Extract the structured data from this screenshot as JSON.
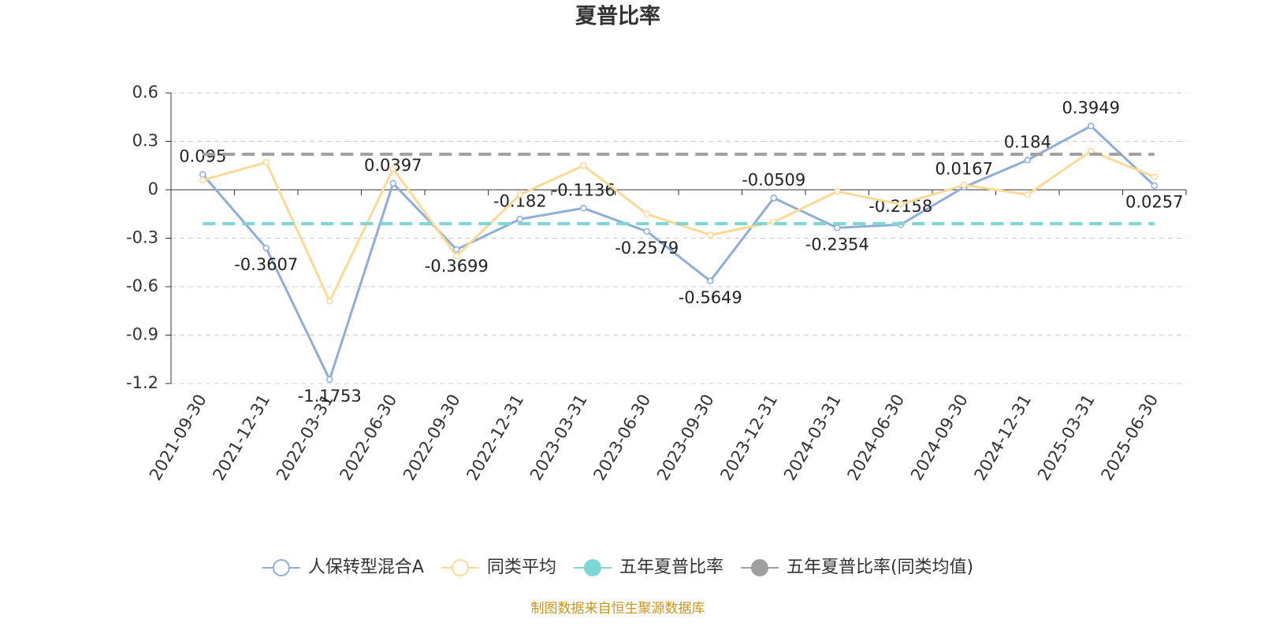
{
  "chart_data": {
    "type": "line",
    "title": "夏普比率",
    "categories": [
      "2021-09-30",
      "2021-12-31",
      "2022-03-31",
      "2022-06-30",
      "2022-09-30",
      "2022-12-31",
      "2023-03-31",
      "2023-06-30",
      "2023-09-30",
      "2023-12-31",
      "2024-03-31",
      "2024-06-30",
      "2024-09-30",
      "2024-12-31",
      "2025-03-31",
      "2025-06-30"
    ],
    "series": [
      {
        "name": "人保转型混合A",
        "color": "#8eaed8",
        "labels": true,
        "values": [
          0.095,
          -0.3607,
          -1.1753,
          0.0397,
          -0.3699,
          -0.182,
          -0.1136,
          -0.2579,
          -0.5649,
          -0.0509,
          -0.2354,
          -0.2158,
          0.0167,
          0.184,
          0.3949,
          0.0257
        ]
      },
      {
        "name": "同类平均",
        "color": "#fcd996",
        "values": [
          0.06,
          0.17,
          -0.69,
          0.13,
          -0.41,
          -0.03,
          0.15,
          -0.15,
          -0.28,
          -0.2,
          -0.01,
          -0.09,
          0.03,
          -0.03,
          0.24,
          0.08
        ]
      },
      {
        "name": "五年夏普比率",
        "color": "#7fd6d6",
        "dash": true,
        "values": [
          -0.21,
          -0.21,
          -0.21,
          -0.21,
          -0.21,
          -0.21,
          -0.21,
          -0.21,
          -0.21,
          -0.21,
          -0.21,
          -0.21,
          -0.21,
          -0.21,
          -0.21,
          -0.21
        ]
      },
      {
        "name": "五年夏普比率(同类均值)",
        "color": "#a0a0a0",
        "dash": true,
        "values": [
          0.22,
          0.22,
          0.22,
          0.22,
          0.22,
          0.22,
          0.22,
          0.22,
          0.22,
          0.22,
          0.22,
          0.22,
          0.22,
          0.22,
          0.22,
          0.22
        ]
      }
    ],
    "ylim": [
      -1.2,
      0.6
    ],
    "yticks": [
      0.6,
      0.3,
      0,
      -0.3,
      -0.6,
      -0.9,
      -1.2
    ],
    "grid": true,
    "legend": "bottom",
    "source": "制图数据来自恒生聚源数据库"
  }
}
